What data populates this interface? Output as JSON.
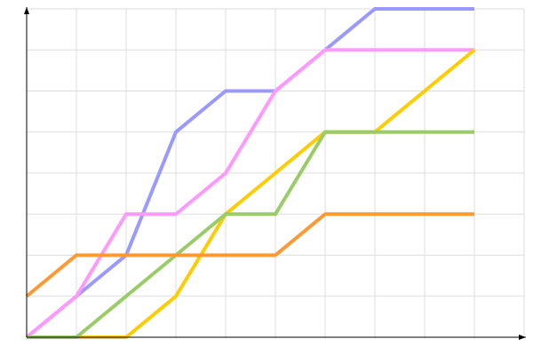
{
  "chart_data": {
    "type": "line",
    "title": "",
    "xlabel": "",
    "ylabel": "",
    "x": [
      0,
      1,
      2,
      3,
      4,
      5,
      6,
      7,
      8,
      9
    ],
    "xlim": [
      0,
      10
    ],
    "ylim": [
      0,
      8
    ],
    "grid": true,
    "legend": "none",
    "series": [
      {
        "color": "#9999ff",
        "values": [
          0,
          1,
          2,
          5,
          6,
          6,
          7,
          8,
          8,
          8
        ]
      },
      {
        "color": "#ff99ff",
        "values": [
          0,
          1,
          3,
          3,
          4,
          6,
          7,
          7,
          7,
          7
        ]
      },
      {
        "color": "#ffcc00",
        "values": [
          0,
          0,
          0,
          1,
          3,
          4,
          5,
          5,
          6,
          7
        ]
      },
      {
        "color": "#99cc66",
        "values": [
          0,
          0,
          1,
          2,
          3,
          3,
          5,
          5,
          5,
          5
        ]
      },
      {
        "color": "#ff9933",
        "values": [
          1,
          2,
          2,
          2,
          2,
          2,
          3,
          3,
          3,
          3
        ]
      }
    ]
  }
}
